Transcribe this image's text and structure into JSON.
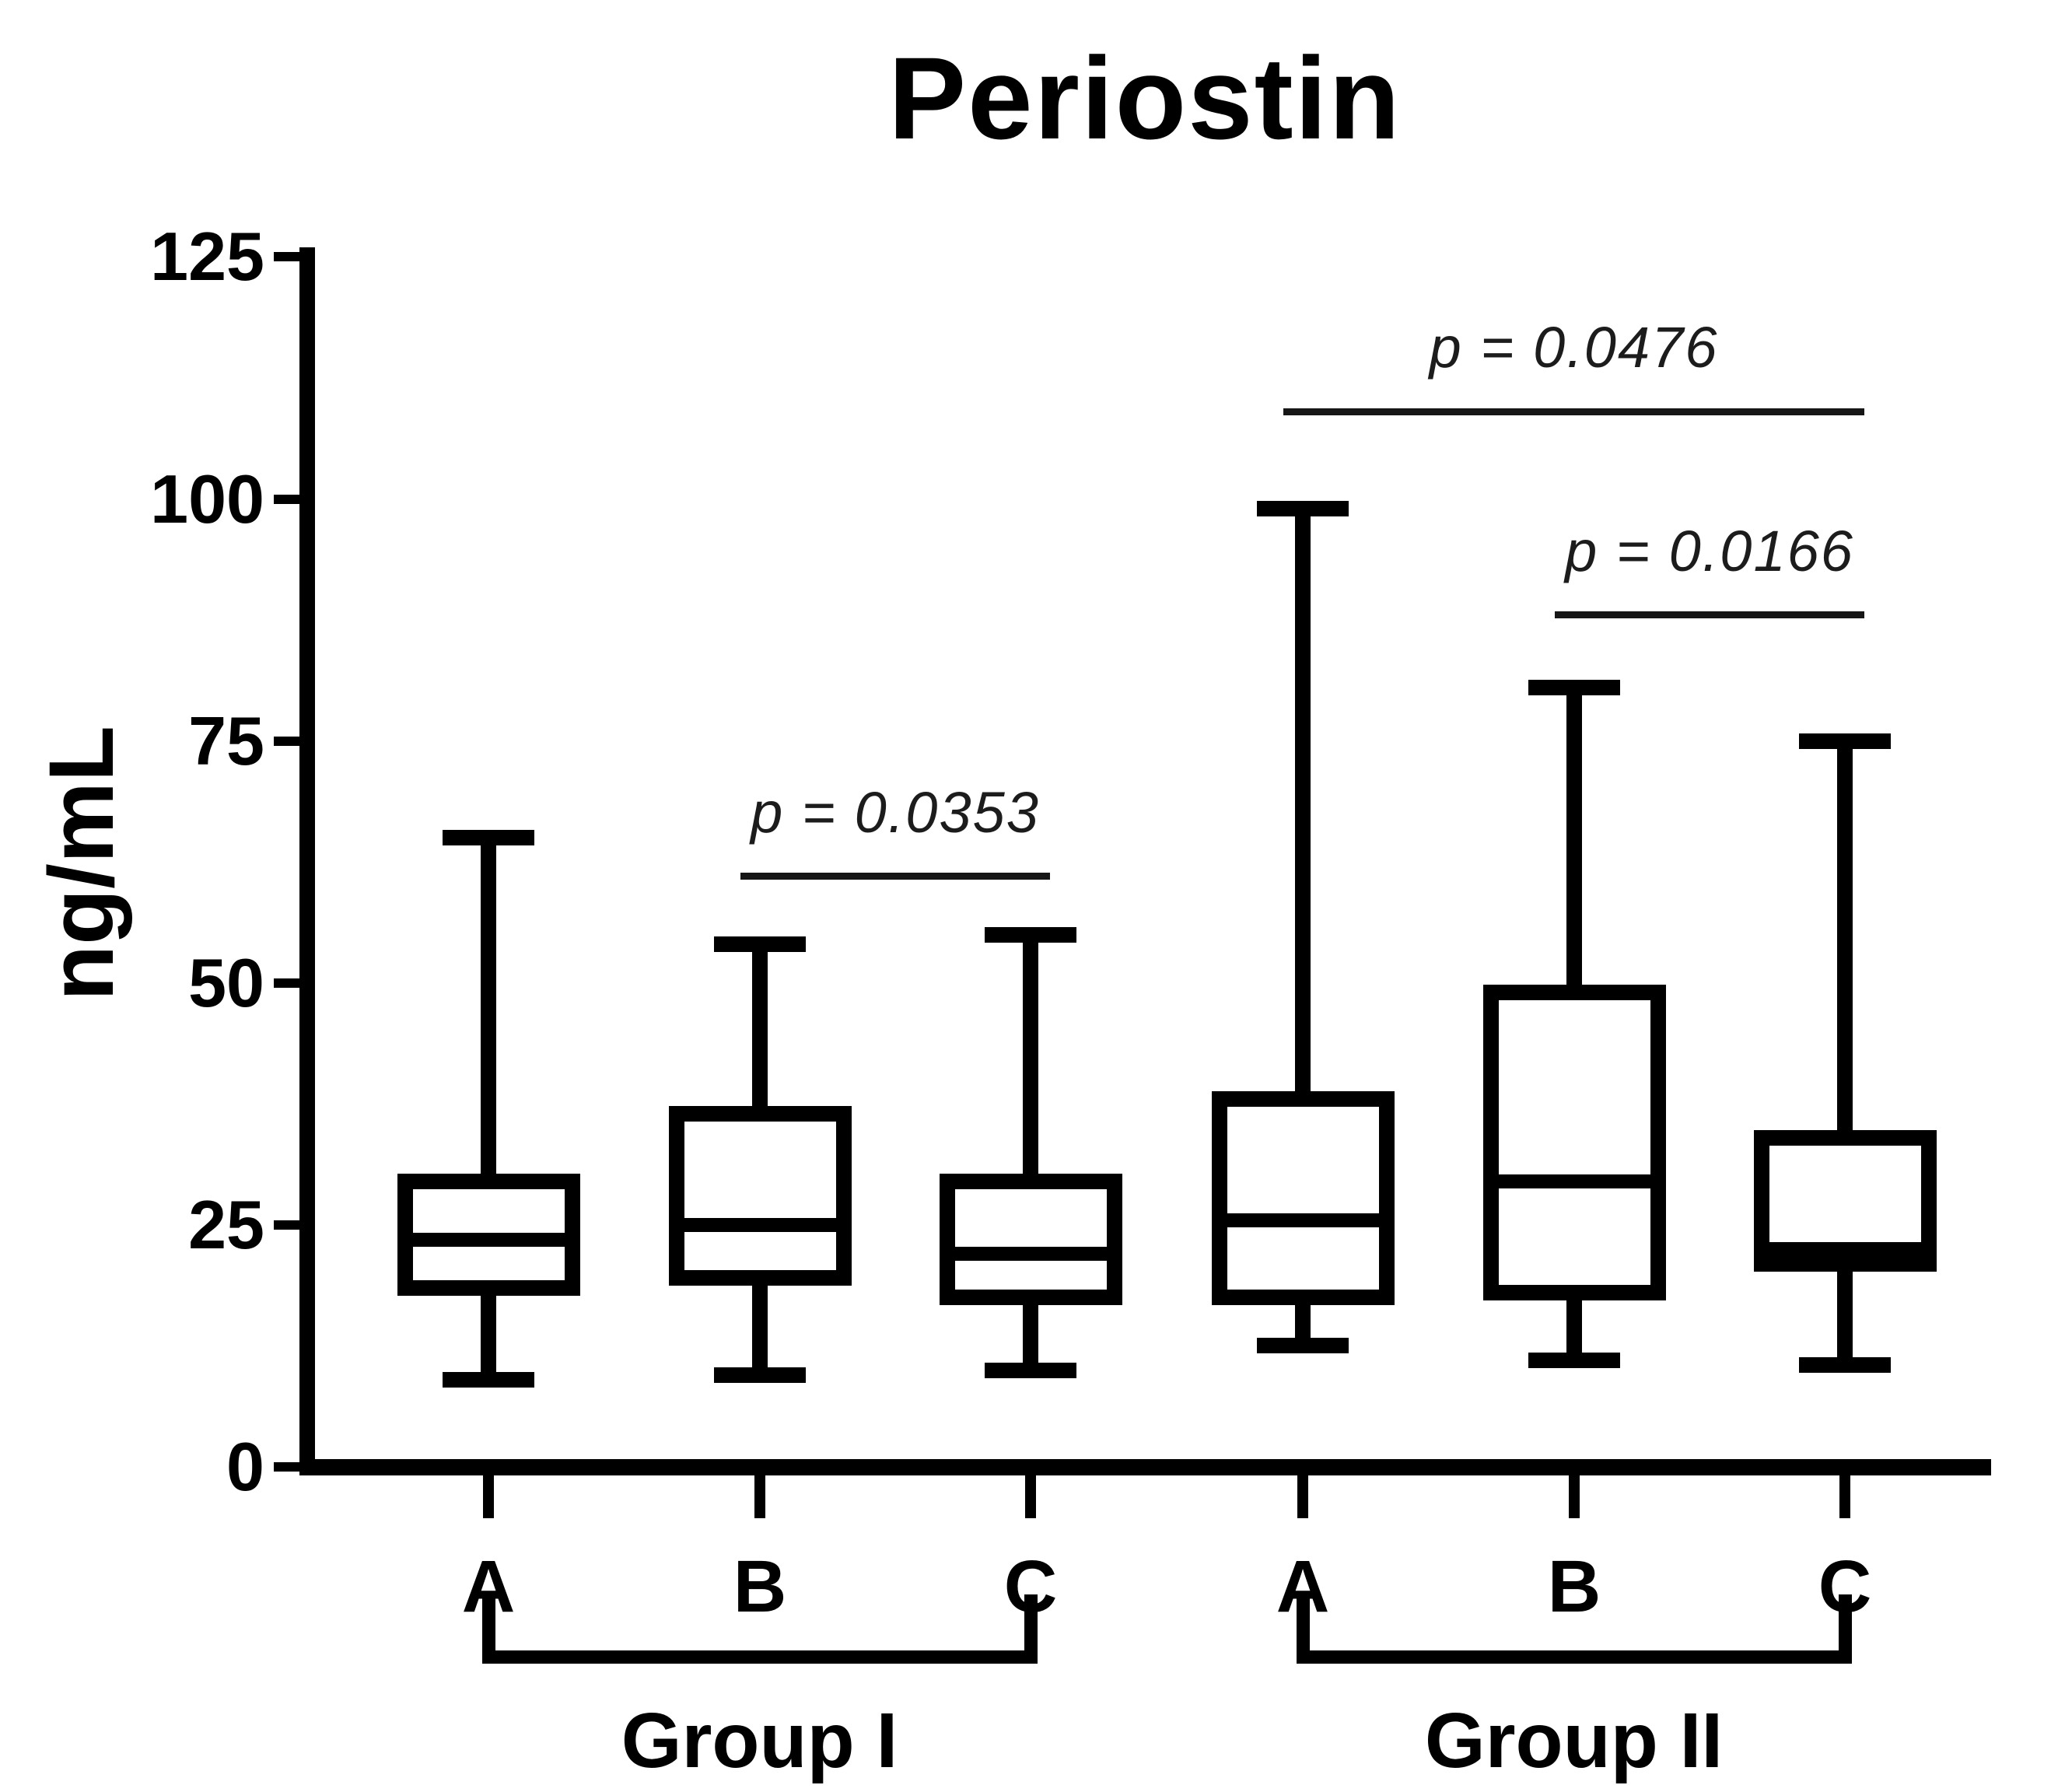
{
  "chart_data": {
    "type": "box",
    "title": "Periostin",
    "ylabel": "ng/mL",
    "ylim": [
      0,
      125
    ],
    "y_ticks": [
      0,
      25,
      50,
      75,
      100,
      125
    ],
    "grid": false,
    "categories": [
      "A",
      "B",
      "C",
      "A",
      "B",
      "C"
    ],
    "groups": [
      {
        "label": "Group I",
        "from": 0,
        "to": 2
      },
      {
        "label": "Group II",
        "from": 3,
        "to": 5
      }
    ],
    "boxes": [
      {
        "group": "Group I",
        "category": "A",
        "min": 9,
        "q1": 18.5,
        "median": 23.5,
        "q3": 29.5,
        "max": 65
      },
      {
        "group": "Group I",
        "category": "B",
        "min": 9.5,
        "q1": 19.5,
        "median": 25,
        "q3": 36.5,
        "max": 54
      },
      {
        "group": "Group I",
        "category": "C",
        "min": 10,
        "q1": 17.5,
        "median": 22,
        "q3": 29.5,
        "max": 55
      },
      {
        "group": "Group II",
        "category": "A",
        "min": 12.5,
        "q1": 17.5,
        "median": 25.5,
        "q3": 38,
        "max": 99
      },
      {
        "group": "Group II",
        "category": "B",
        "min": 11,
        "q1": 18,
        "median": 29.5,
        "q3": 49,
        "max": 80.5
      },
      {
        "group": "Group II",
        "category": "C",
        "min": 10.5,
        "q1": 21,
        "median": 22.5,
        "q3": 34,
        "max": 75
      }
    ],
    "annotations": [
      {
        "label": "p = 0.0353",
        "from": 1,
        "to": 2,
        "line_y": 61
      },
      {
        "label": "p = 0.0476",
        "from": 3,
        "to": 5,
        "line_y": 109
      },
      {
        "label": "p = 0.0166",
        "from": 4,
        "to": 5,
        "line_y": 88
      }
    ],
    "colors": {
      "stroke": "#000000",
      "background": "#ffffff"
    }
  }
}
